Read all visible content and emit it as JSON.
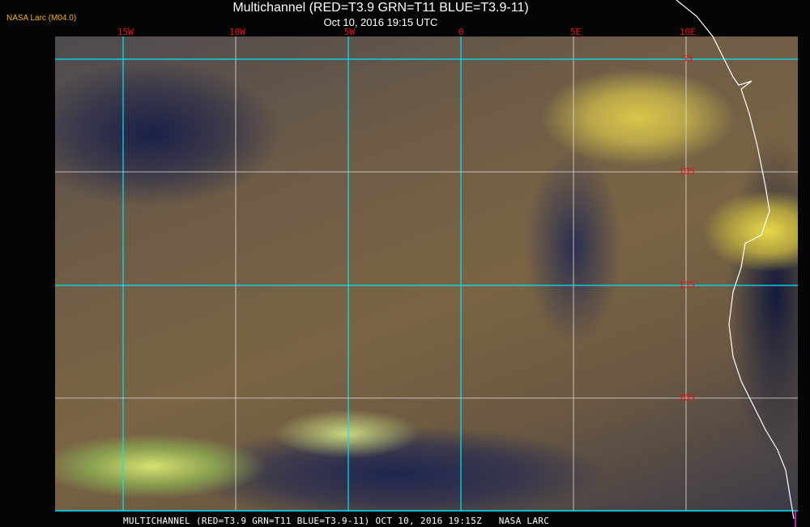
{
  "header": {
    "title": "Multichannel (RED=T3.9 GRN=T11 BLUE=T3.9-11)",
    "subtitle": "Oct 10, 2016 19:15 UTC",
    "badge": "NASA Larc (M04.0)"
  },
  "map": {
    "longitude_labels": [
      "15W",
      "10W",
      "5W",
      "0",
      "5E",
      "10E"
    ],
    "latitude_labels": [
      "5S",
      "10S",
      "15S",
      "20S"
    ],
    "colors": {
      "grid_primary": "#00e5ff",
      "grid_secondary": "#e0e0e0",
      "grid_label": "#e8141a",
      "coastline": "#ffffff",
      "badge": "#f0b020"
    }
  },
  "footer": {
    "caption": "MULTICHANNEL (RED=T3.9 GRN=T11 BLUE=T3.9-11) OCT 10, 2016 19:15Z   NASA LARC"
  }
}
